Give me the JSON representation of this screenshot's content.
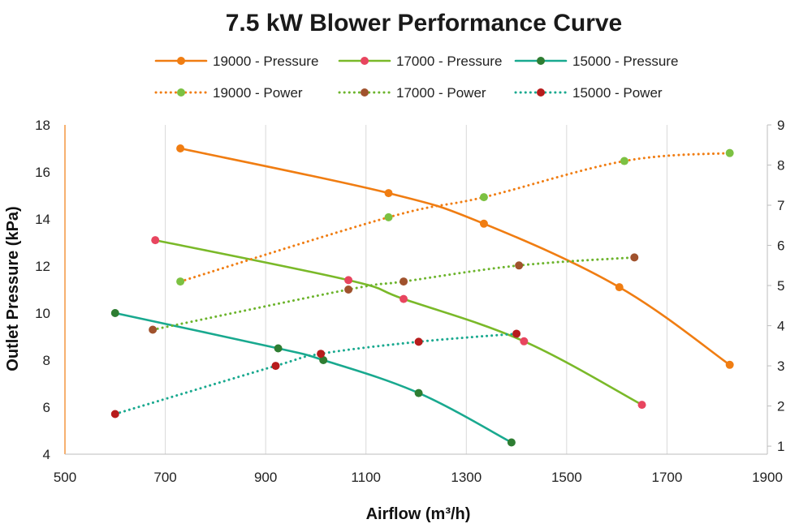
{
  "chart_data": {
    "type": "line",
    "title": "7.5 kW Blower Performance Curve",
    "xlabel": "Airflow (m³/h)",
    "ylabel": "Outlet Pressure (kPa)",
    "y2label": "",
    "xlim": [
      500,
      1900
    ],
    "ylim": [
      4,
      18
    ],
    "y2lim": [
      0.8,
      9
    ],
    "x_ticks": [
      500,
      700,
      900,
      1100,
      1300,
      1500,
      1700,
      1900
    ],
    "y_ticks": [
      4,
      6,
      8,
      10,
      12,
      14,
      16,
      18
    ],
    "y2_ticks": [
      1,
      2,
      3,
      4,
      5,
      6,
      7,
      8,
      9
    ],
    "grid": "vertical",
    "legend_position": "top",
    "series": [
      {
        "name": "19000 - Pressure",
        "axis": "left",
        "style": "solid",
        "line_color": "#F07D12",
        "marker_color": "#F07D12",
        "x": [
          730,
          1145,
          1335,
          1605,
          1825
        ],
        "y": [
          17.0,
          15.1,
          13.8,
          11.1,
          7.8
        ]
      },
      {
        "name": "17000 - Pressure",
        "axis": "left",
        "style": "solid",
        "line_color": "#7AB929",
        "marker_color": "#E8455F",
        "x": [
          680,
          1065,
          1175,
          1415,
          1650
        ],
        "y": [
          13.1,
          11.4,
          10.6,
          8.8,
          6.1
        ]
      },
      {
        "name": "15000 - Pressure",
        "axis": "left",
        "style": "solid",
        "line_color": "#19A98F",
        "marker_color": "#2E7D32",
        "x": [
          600,
          925,
          1015,
          1205,
          1390
        ],
        "y": [
          10.0,
          8.5,
          8.0,
          6.6,
          4.5
        ]
      },
      {
        "name": "19000 - Power",
        "axis": "right",
        "style": "dotted",
        "line_color": "#F07D12",
        "marker_color": "#7CC142",
        "x": [
          730,
          1145,
          1335,
          1615,
          1825
        ],
        "y": [
          5.1,
          6.7,
          7.2,
          8.1,
          8.3
        ]
      },
      {
        "name": "17000 - Power",
        "axis": "right",
        "style": "dotted",
        "line_color": "#6CB42C",
        "marker_color": "#A0522D",
        "x": [
          675,
          1065,
          1175,
          1405,
          1635
        ],
        "y": [
          3.9,
          4.9,
          5.1,
          5.5,
          5.7
        ]
      },
      {
        "name": "15000 - Power",
        "axis": "right",
        "style": "dotted",
        "line_color": "#19A98F",
        "marker_color": "#B71C1C",
        "x": [
          600,
          920,
          1010,
          1205,
          1400
        ],
        "y": [
          1.8,
          3.0,
          3.3,
          3.6,
          3.8
        ]
      }
    ]
  }
}
